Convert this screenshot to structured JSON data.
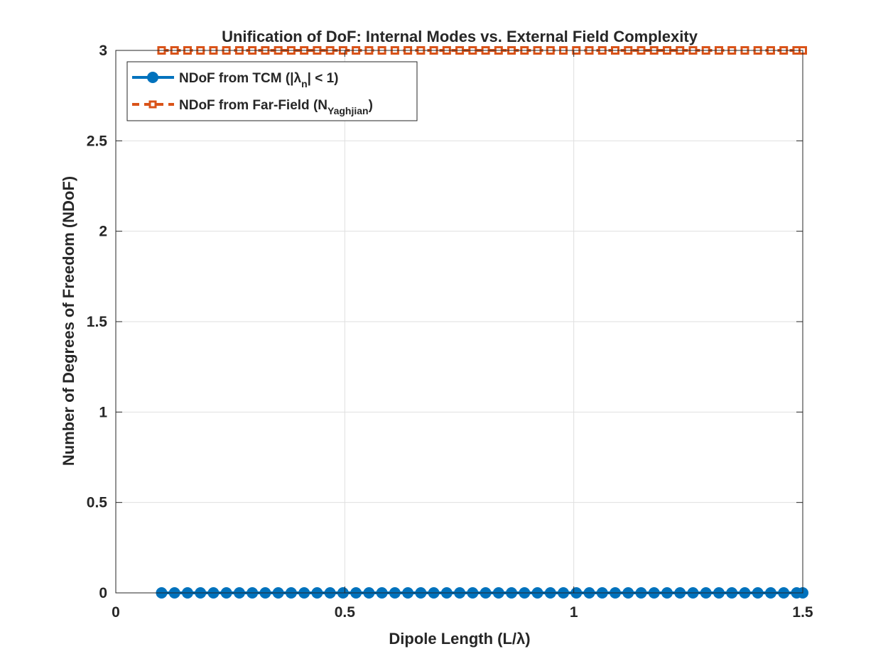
{
  "chart_data": {
    "type": "line",
    "title": "Unification of DoF: Internal Modes vs. External Field Complexity",
    "xlabel": "Dipole Length (L/λ)",
    "ylabel": "Number of Degrees of Freedom (NDoF)",
    "xlim": [
      0,
      1.5
    ],
    "ylim": [
      0,
      3
    ],
    "xticks": [
      0,
      0.5,
      1,
      1.5
    ],
    "xtick_labels": [
      "0",
      "0.5",
      "1",
      "1.5"
    ],
    "yticks": [
      0,
      0.5,
      1,
      1.5,
      2,
      2.5,
      3
    ],
    "ytick_labels": [
      "0",
      "0.5",
      "1",
      "1.5",
      "2",
      "2.5",
      "3"
    ],
    "grid": true,
    "legend_position": "top-left",
    "x": [
      0.1,
      0.1283,
      0.1566,
      0.1849,
      0.2132,
      0.2415,
      0.2698,
      0.2981,
      0.3264,
      0.3547,
      0.383,
      0.4113,
      0.4396,
      0.4679,
      0.4962,
      0.5245,
      0.5528,
      0.5811,
      0.6094,
      0.6377,
      0.666,
      0.6943,
      0.7226,
      0.7509,
      0.7792,
      0.8075,
      0.8358,
      0.8641,
      0.8924,
      0.9207,
      0.949,
      0.9773,
      1.0056,
      1.0339,
      1.0622,
      1.0905,
      1.1188,
      1.1471,
      1.1754,
      1.2037,
      1.232,
      1.2603,
      1.2886,
      1.3169,
      1.3452,
      1.3735,
      1.4018,
      1.4301,
      1.4584,
      1.4867,
      1.5
    ],
    "series": [
      {
        "name": "NDoF from TCM (|λn| < 1)",
        "legend_main": "NDoF from TCM (|λ",
        "legend_sub": "n",
        "legend_tail": "| < 1)",
        "color": "#0072BD",
        "marker": "circle",
        "line_style": "solid",
        "values": [
          0,
          0,
          0,
          0,
          0,
          0,
          0,
          0,
          0,
          0,
          0,
          0,
          0,
          0,
          0,
          0,
          0,
          0,
          0,
          0,
          0,
          0,
          0,
          0,
          0,
          0,
          0,
          0,
          0,
          0,
          0,
          0,
          0,
          0,
          0,
          0,
          0,
          0,
          0,
          0,
          0,
          0,
          0,
          0,
          0,
          0,
          0,
          0,
          0,
          0,
          0
        ]
      },
      {
        "name": "NDoF from Far-Field (NYaghjian)",
        "legend_main": "NDoF from Far-Field (N",
        "legend_sub": "Yaghjian",
        "legend_tail": ")",
        "color": "#D95319",
        "marker": "square",
        "line_style": "dashed",
        "values": [
          3,
          3,
          3,
          3,
          3,
          3,
          3,
          3,
          3,
          3,
          3,
          3,
          3,
          3,
          3,
          3,
          3,
          3,
          3,
          3,
          3,
          3,
          3,
          3,
          3,
          3,
          3,
          3,
          3,
          3,
          3,
          3,
          3,
          3,
          3,
          3,
          3,
          3,
          3,
          3,
          3,
          3,
          3,
          3,
          3,
          3,
          3,
          3,
          3,
          3,
          3
        ]
      }
    ]
  }
}
